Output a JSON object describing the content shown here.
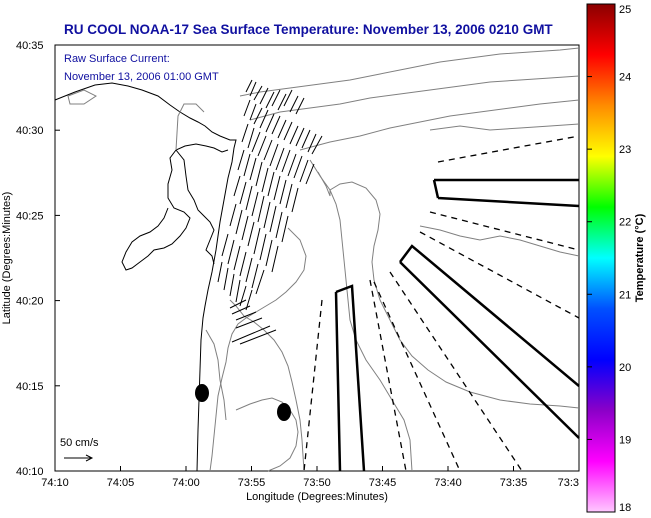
{
  "title": "RU COOL  NOAA-17  Sea Surface Temperature:  November 13, 2006 0210 GMT",
  "inset": {
    "line1": "Raw Surface Current:",
    "line2": "November 13, 2006 01:00 GMT"
  },
  "scale_label": "50 cm/s",
  "chart_data": {
    "type": "map",
    "xlabel": "Longitude (Degrees:Minutes)",
    "ylabel": "Latitude (Degrees:Minutes)",
    "x_ticks": [
      "74:10",
      "74:05",
      "74:00",
      "73:55",
      "73:50",
      "73:45",
      "73:40",
      "73:35",
      "73:3"
    ],
    "y_ticks": [
      "40:35",
      "40:30",
      "40:25",
      "40:20",
      "40:15",
      "40:10"
    ],
    "colorbar": {
      "label": "Temperature (°C)",
      "range": [
        18,
        25
      ],
      "ticks": [
        "25",
        "24",
        "23",
        "22",
        "21",
        "20",
        "19",
        "18"
      ],
      "colors": [
        "#8b0000",
        "#ff0000",
        "#ff8c00",
        "#ffff00",
        "#00ff00",
        "#00ffff",
        "#0050ff",
        "#0000ff",
        "#8b00c8",
        "#ff00ff",
        "#ffc8ff"
      ]
    },
    "grid": false
  }
}
